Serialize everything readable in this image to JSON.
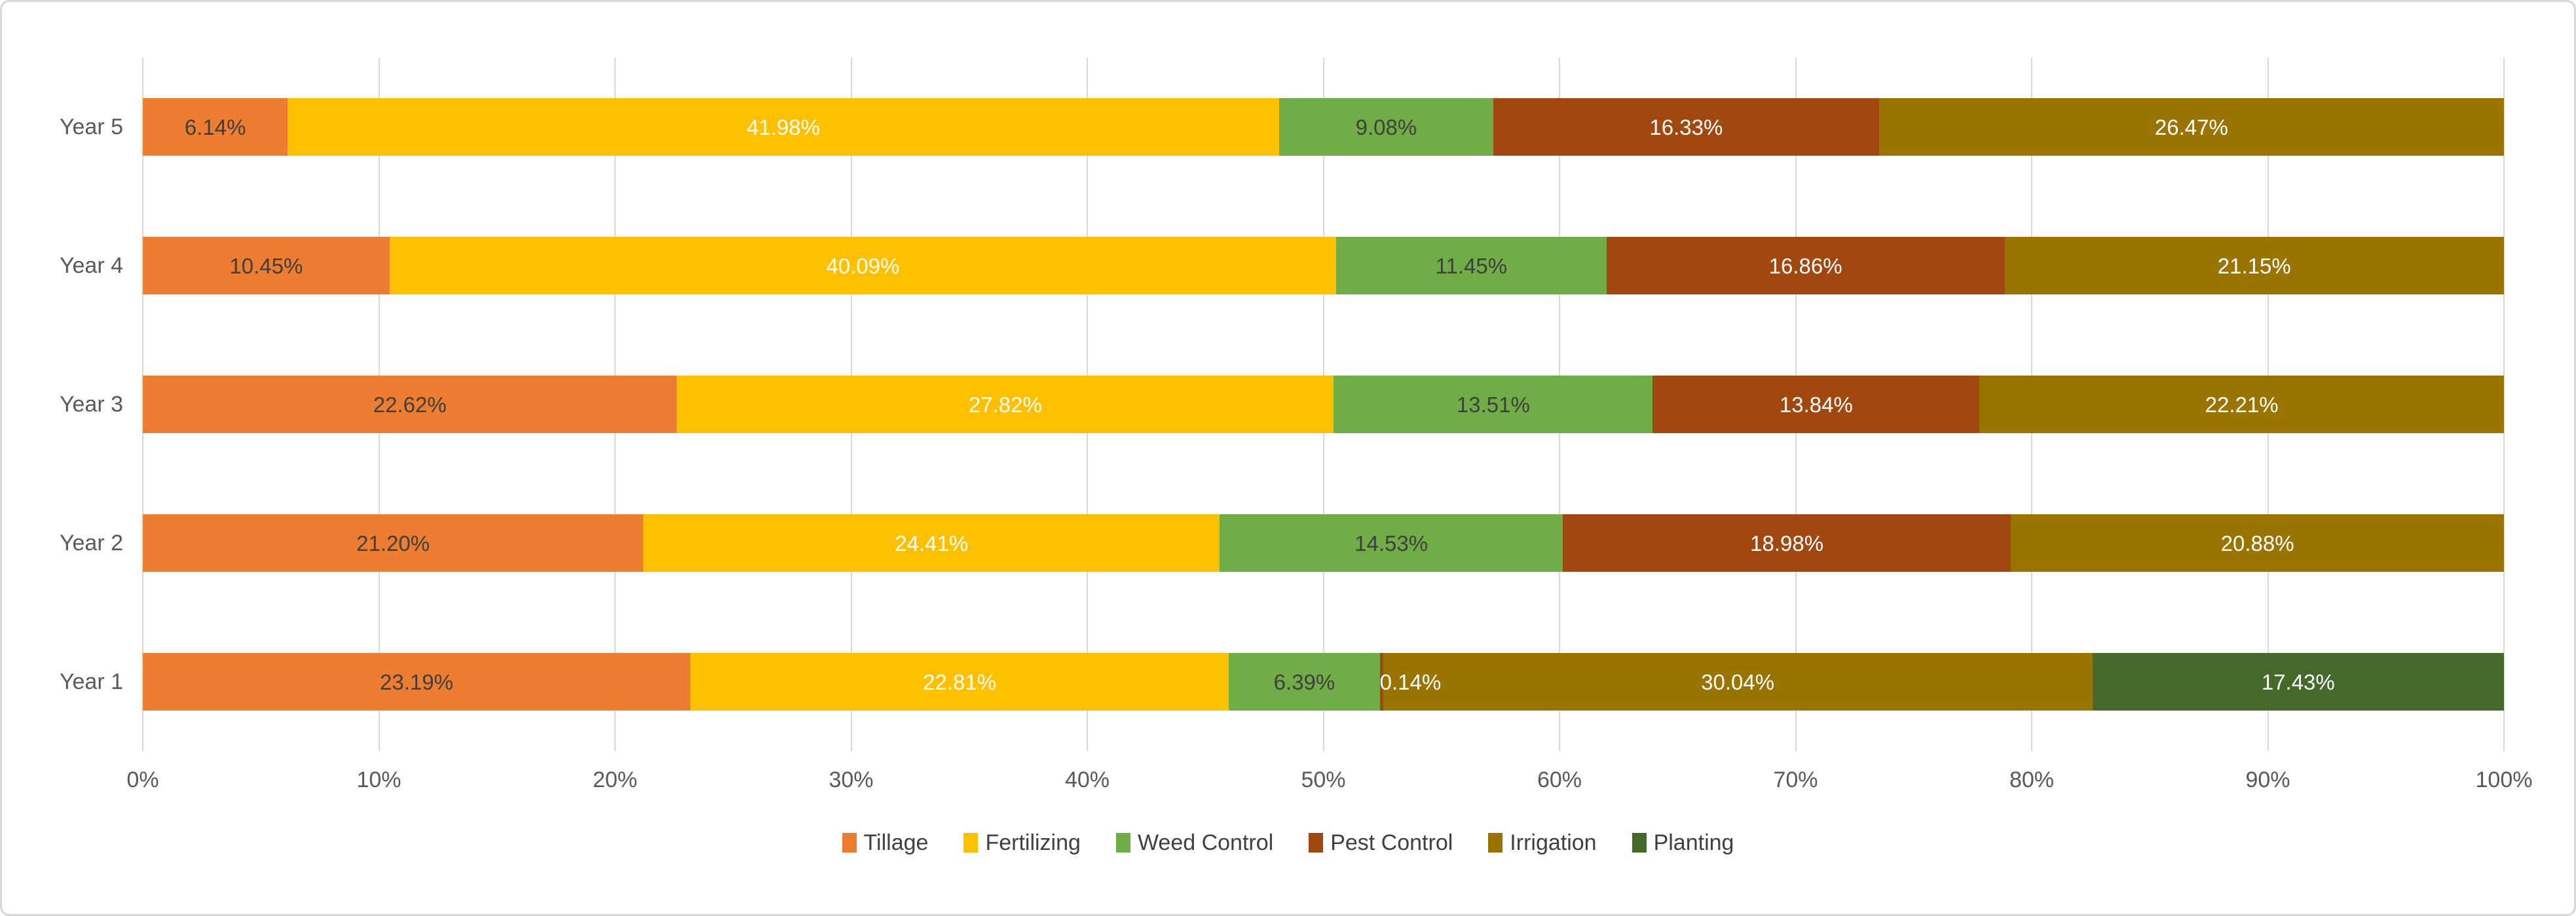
{
  "chart_data": {
    "type": "bar",
    "orientation": "horizontal",
    "stacked": true,
    "unit": "%",
    "label_format": "0.00%",
    "grid": "vertical",
    "gridline_color": "#d9d9d9",
    "legend_position": "bottom",
    "axis_text_color": "#595959",
    "categories": [
      "Year 5",
      "Year 4",
      "Year 3",
      "Year 2",
      "Year 1"
    ],
    "series": [
      {
        "name": "Tillage",
        "color": "#ED7D31",
        "label_color": "#3f3f3f",
        "values": [
          6.14,
          10.45,
          22.62,
          21.2,
          23.19
        ]
      },
      {
        "name": "Fertilizing",
        "color": "#FFC000",
        "label_color": "#ffffff",
        "values": [
          41.98,
          40.09,
          27.82,
          24.41,
          22.81
        ]
      },
      {
        "name": "Weed Control",
        "color": "#70AD47",
        "label_color": "#3f3f3f",
        "values": [
          9.08,
          11.45,
          13.51,
          14.53,
          6.39
        ]
      },
      {
        "name": "Pest Control",
        "color": "#A0480F",
        "label_color": "#ffffff",
        "values": [
          16.33,
          16.86,
          13.84,
          18.98,
          0.14
        ]
      },
      {
        "name": "Irrigation",
        "color": "#9A7400",
        "label_color": "#ffffff",
        "values": [
          26.47,
          21.15,
          22.21,
          20.88,
          30.04
        ]
      },
      {
        "name": "Planting",
        "color": "#45682B",
        "label_color": "#ffffff",
        "values": [
          0,
          0,
          0,
          0,
          17.43
        ]
      }
    ],
    "data_labels": [
      [
        "6.14%",
        "41.98%",
        "9.08%",
        "16.33%",
        "26.47%",
        ""
      ],
      [
        "10.45%",
        "40.09%",
        "11.45%",
        "16.86%",
        "21.15%",
        ""
      ],
      [
        "22.62%",
        "27.82%",
        "13.51%",
        "13.84%",
        "22.21%",
        ""
      ],
      [
        "21.20%",
        "24.41%",
        "14.53%",
        "18.98%",
        "20.88%",
        ""
      ],
      [
        "23.19%",
        "22.81%",
        "6.39%",
        "0.14%",
        "30.04%",
        "17.43%"
      ]
    ],
    "x_ticks": [
      "0%",
      "10%",
      "20%",
      "30%",
      "40%",
      "50%",
      "60%",
      "70%",
      "80%",
      "90%",
      "100%"
    ],
    "xlim": [
      0,
      100
    ],
    "legend_labels": [
      "Tillage",
      "Fertilizing",
      "Weed Control",
      "Pest Control",
      "Irrigation",
      "Planting"
    ]
  }
}
